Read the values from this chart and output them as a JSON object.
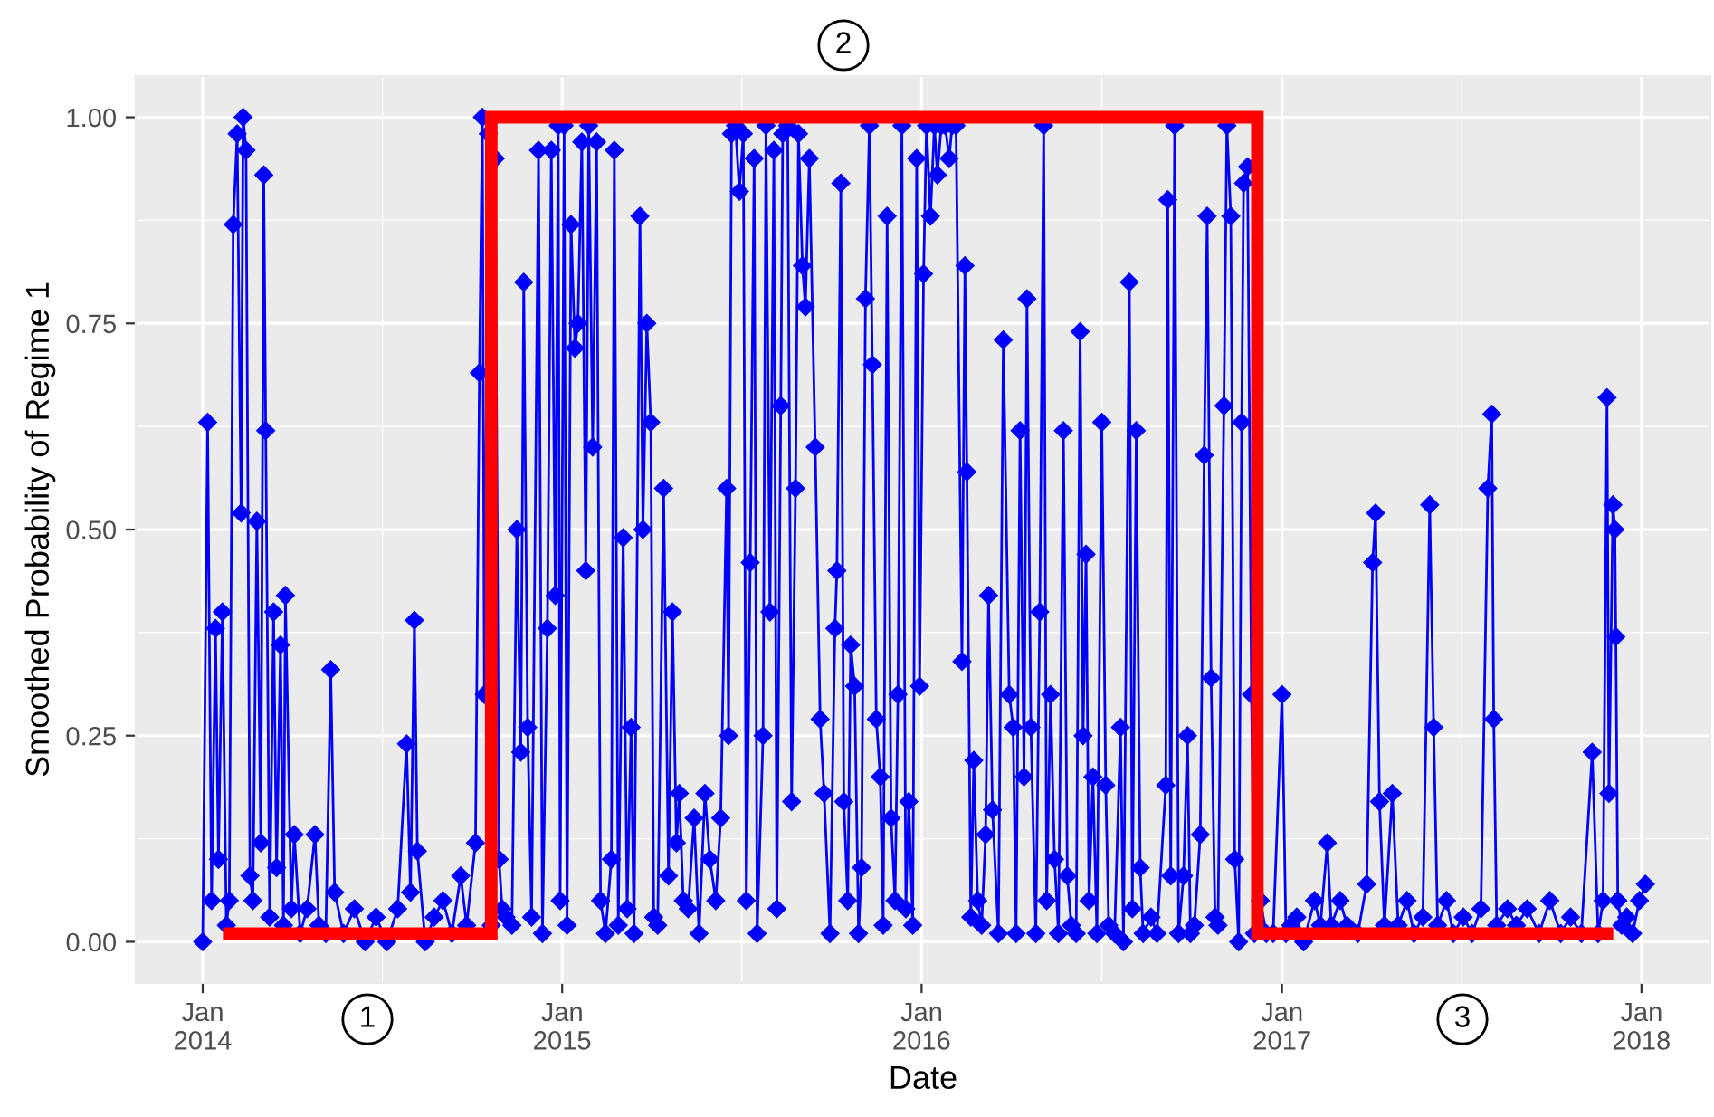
{
  "chart_data": {
    "type": "line",
    "xlabel": "Date",
    "ylabel": "Smoothed Probability of Regime 1",
    "xlim": [
      "2013-10-25",
      "2018-03-12"
    ],
    "ylim": [
      -0.05,
      1.05
    ],
    "xticks": [
      {
        "value": "2014-01-01",
        "label": "Jan\n2014"
      },
      {
        "value": "2015-01-01",
        "label": "Jan\n2015"
      },
      {
        "value": "2016-01-01",
        "label": "Jan\n2016"
      },
      {
        "value": "2017-01-01",
        "label": "Jan\n2017"
      },
      {
        "value": "2018-01-01",
        "label": "Jan\n2018"
      }
    ],
    "yticks": [
      {
        "value": 0,
        "label": "0.00"
      },
      {
        "value": 0.25,
        "label": "0.25"
      },
      {
        "value": 0.5,
        "label": "0.50"
      },
      {
        "value": 0.75,
        "label": "0.75"
      },
      {
        "value": 1,
        "label": "1.00"
      }
    ],
    "grid": true,
    "annotations": [
      "1",
      "2",
      "3"
    ],
    "series": [
      {
        "color": "#0000ff",
        "marker": "diamond",
        "line_style": "solid",
        "x": [
          "2014-01-01",
          "2014-01-06",
          "2014-01-10",
          "2014-01-14",
          "2014-01-17",
          "2014-01-21",
          "2014-01-25",
          "2014-01-28",
          "2014-02-01",
          "2014-02-05",
          "2014-02-09",
          "2014-02-11",
          "2014-02-14",
          "2014-02-18",
          "2014-02-21",
          "2014-02-25",
          "2014-03-01",
          "2014-03-04",
          "2014-03-06",
          "2014-03-10",
          "2014-03-14",
          "2014-03-17",
          "2014-03-21",
          "2014-03-24",
          "2014-03-26",
          "2014-04-01",
          "2014-04-04",
          "2014-04-10",
          "2014-04-17",
          "2014-04-25",
          "2014-04-29",
          "2014-05-06",
          "2014-05-11",
          "2014-05-15",
          "2014-05-24",
          "2014-06-04",
          "2014-06-15",
          "2014-06-26",
          "2014-07-07",
          "2014-07-18",
          "2014-07-27",
          "2014-07-31",
          "2014-08-04",
          "2014-08-07",
          "2014-08-15",
          "2014-08-24",
          "2014-09-02",
          "2014-09-11",
          "2014-09-20",
          "2014-09-26",
          "2014-10-05",
          "2014-10-09",
          "2014-10-12",
          "2014-10-14",
          "2014-10-18",
          "2014-10-21",
          "2014-10-25",
          "2014-10-29",
          "2014-11-01",
          "2014-11-05",
          "2014-11-11",
          "2014-11-16",
          "2014-11-20",
          "2014-11-23",
          "2014-11-27",
          "2014-12-01",
          "2014-12-08",
          "2014-12-12",
          "2014-12-17",
          "2014-12-21",
          "2014-12-25",
          "2014-12-28",
          "2014-12-30",
          "2015-01-03",
          "2015-01-06",
          "2015-01-10",
          "2015-01-14",
          "2015-01-17",
          "2015-01-21",
          "2015-01-25",
          "2015-01-28",
          "2015-02-01",
          "2015-02-05",
          "2015-02-09",
          "2015-02-14",
          "2015-02-20",
          "2015-02-23",
          "2015-02-27",
          "2015-03-04",
          "2015-03-08",
          "2015-03-12",
          "2015-03-15",
          "2015-03-21",
          "2015-03-24",
          "2015-03-28",
          "2015-04-01",
          "2015-04-04",
          "2015-04-08",
          "2015-04-14",
          "2015-04-19",
          "2015-04-23",
          "2015-04-27",
          "2015-04-30",
          "2015-05-04",
          "2015-05-09",
          "2015-05-15",
          "2015-05-20",
          "2015-05-26",
          "2015-05-31",
          "2015-06-06",
          "2015-06-11",
          "2015-06-17",
          "2015-06-19",
          "2015-06-22",
          "2015-06-26",
          "2015-06-30",
          "2015-07-04",
          "2015-07-07",
          "2015-07-11",
          "2015-07-15",
          "2015-07-18",
          "2015-07-24",
          "2015-07-27",
          "2015-07-31",
          "2015-08-04",
          "2015-08-07",
          "2015-08-11",
          "2015-08-13",
          "2015-08-18",
          "2015-08-22",
          "2015-08-26",
          "2015-08-29",
          "2015-09-02",
          "2015-09-05",
          "2015-09-09",
          "2015-09-15",
          "2015-09-20",
          "2015-09-24",
          "2015-09-30",
          "2015-10-05",
          "2015-10-07",
          "2015-10-11",
          "2015-10-14",
          "2015-10-18",
          "2015-10-21",
          "2015-10-25",
          "2015-10-29",
          "2015-11-01",
          "2015-11-05",
          "2015-11-09",
          "2015-11-12",
          "2015-11-16",
          "2015-11-20",
          "2015-11-23",
          "2015-11-27",
          "2015-12-01",
          "2015-12-05",
          "2015-12-08",
          "2015-12-12",
          "2015-12-16",
          "2015-12-19",
          "2015-12-23",
          "2015-12-27",
          "2015-12-30",
          "2016-01-03",
          "2016-01-06",
          "2016-01-10",
          "2016-01-14",
          "2016-01-17",
          "2016-01-21",
          "2016-01-25",
          "2016-01-29",
          "2016-02-01",
          "2016-02-05",
          "2016-02-11",
          "2016-02-14",
          "2016-02-16",
          "2016-02-20",
          "2016-02-23",
          "2016-02-27",
          "2016-03-02",
          "2016-03-06",
          "2016-03-09",
          "2016-03-13",
          "2016-03-19",
          "2016-03-24",
          "2016-03-30",
          "2016-04-03",
          "2016-04-06",
          "2016-04-10",
          "2016-04-14",
          "2016-04-17",
          "2016-04-21",
          "2016-04-26",
          "2016-04-30",
          "2016-05-04",
          "2016-05-07",
          "2016-05-11",
          "2016-05-15",
          "2016-05-19",
          "2016-05-24",
          "2016-05-28",
          "2016-06-01",
          "2016-06-06",
          "2016-06-10",
          "2016-06-13",
          "2016-06-16",
          "2016-06-19",
          "2016-06-23",
          "2016-06-27",
          "2016-07-02",
          "2016-07-06",
          "2016-07-09",
          "2016-07-15",
          "2016-07-21",
          "2016-07-24",
          "2016-07-30",
          "2016-08-02",
          "2016-08-06",
          "2016-08-10",
          "2016-08-13",
          "2016-08-21",
          "2016-08-27",
          "2016-09-05",
          "2016-09-07",
          "2016-09-10",
          "2016-09-14",
          "2016-09-18",
          "2016-09-23",
          "2016-09-27",
          "2016-09-30",
          "2016-10-04",
          "2016-10-10",
          "2016-10-14",
          "2016-10-17",
          "2016-10-21",
          "2016-10-25",
          "2016-10-28",
          "2016-11-03",
          "2016-11-06",
          "2016-11-10",
          "2016-11-14",
          "2016-11-18",
          "2016-11-21",
          "2016-11-23",
          "2016-11-27",
          "2016-12-01",
          "2016-12-04",
          "2016-12-10",
          "2016-12-16",
          "2016-12-23",
          "2017-01-01",
          "2017-01-05",
          "2017-01-10",
          "2017-01-16",
          "2017-01-23",
          "2017-02-03",
          "2017-02-09",
          "2017-02-16",
          "2017-02-20",
          "2017-03-01",
          "2017-03-08",
          "2017-03-19",
          "2017-03-28",
          "2017-04-03",
          "2017-04-06",
          "2017-04-10",
          "2017-04-15",
          "2017-04-23",
          "2017-04-29",
          "2017-05-08",
          "2017-05-15",
          "2017-05-24",
          "2017-05-31",
          "2017-06-04",
          "2017-06-08",
          "2017-06-17",
          "2017-06-24",
          "2017-07-04",
          "2017-07-13",
          "2017-07-22",
          "2017-07-29",
          "2017-08-02",
          "2017-08-04",
          "2017-08-07",
          "2017-08-18",
          "2017-08-27",
          "2017-09-07",
          "2017-09-19",
          "2017-09-30",
          "2017-10-11",
          "2017-10-21",
          "2017-11-01",
          "2017-11-12",
          "2017-11-18",
          "2017-11-23",
          "2017-11-27",
          "2017-11-29",
          "2017-12-03",
          "2017-12-05",
          "2017-12-06",
          "2017-12-08",
          "2017-12-12",
          "2017-12-17",
          "2017-12-23",
          "2017-12-30",
          "2018-01-05"
        ],
        "values": [
          0.0,
          0.63,
          0.05,
          0.38,
          0.1,
          0.4,
          0.02,
          0.05,
          0.87,
          0.98,
          0.52,
          1.0,
          0.96,
          0.08,
          0.05,
          0.51,
          0.12,
          0.93,
          0.62,
          0.03,
          0.4,
          0.09,
          0.36,
          0.02,
          0.42,
          0.04,
          0.13,
          0.01,
          0.04,
          0.13,
          0.02,
          0.01,
          0.33,
          0.06,
          0.01,
          0.04,
          0.0,
          0.03,
          0.0,
          0.04,
          0.24,
          0.06,
          0.39,
          0.11,
          0.0,
          0.03,
          0.05,
          0.01,
          0.08,
          0.02,
          0.12,
          0.69,
          1.0,
          0.3,
          0.98,
          0.02,
          0.95,
          0.1,
          0.04,
          0.03,
          0.02,
          0.5,
          0.23,
          0.8,
          0.26,
          0.03,
          0.96,
          0.01,
          0.38,
          0.96,
          0.42,
          0.99,
          0.05,
          0.99,
          0.02,
          0.87,
          0.72,
          0.75,
          0.97,
          0.45,
          0.99,
          0.6,
          0.97,
          0.05,
          0.01,
          0.1,
          0.96,
          0.02,
          0.49,
          0.04,
          0.26,
          0.01,
          0.88,
          0.5,
          0.75,
          0.63,
          0.03,
          0.02,
          0.55,
          0.08,
          0.4,
          0.12,
          0.18,
          0.05,
          0.04,
          0.15,
          0.01,
          0.18,
          0.1,
          0.05,
          0.15,
          0.55,
          0.25,
          0.98,
          0.99,
          0.91,
          0.98,
          0.05,
          0.46,
          0.95,
          0.01,
          0.25,
          0.99,
          0.4,
          0.96,
          0.04,
          0.65,
          0.98,
          0.99,
          0.17,
          0.55,
          0.98,
          0.82,
          0.77,
          0.95,
          0.6,
          0.27,
          0.18,
          0.01,
          0.38,
          0.45,
          0.92,
          0.17,
          0.05,
          0.36,
          0.31,
          0.01,
          0.09,
          0.78,
          0.99,
          0.7,
          0.27,
          0.2,
          0.02,
          0.88,
          0.15,
          0.05,
          0.3,
          0.99,
          0.04,
          0.17,
          0.02,
          0.95,
          0.31,
          0.81,
          0.99,
          0.88,
          0.99,
          0.93,
          0.99,
          0.99,
          0.95,
          0.99,
          0.99,
          0.34,
          0.82,
          0.57,
          0.03,
          0.22,
          0.05,
          0.02,
          0.13,
          0.42,
          0.16,
          0.01,
          0.73,
          0.3,
          0.26,
          0.01,
          0.62,
          0.2,
          0.78,
          0.26,
          0.01,
          0.4,
          0.99,
          0.05,
          0.3,
          0.1,
          0.01,
          0.62,
          0.08,
          0.02,
          0.01,
          0.74,
          0.25,
          0.47,
          0.05,
          0.2,
          0.01,
          0.63,
          0.19,
          0.02,
          0.01,
          0.26,
          0.0,
          0.8,
          0.04,
          0.62,
          0.09,
          0.01,
          0.03,
          0.01,
          0.19,
          0.9,
          0.08,
          0.99,
          0.01,
          0.08,
          0.25,
          0.01,
          0.02,
          0.13,
          0.59,
          0.88,
          0.32,
          0.03,
          0.02,
          0.65,
          0.99,
          0.88,
          0.1,
          0.0,
          0.63,
          0.92,
          0.94,
          0.3,
          0.01,
          0.05,
          0.01,
          0.01,
          0.3,
          0.01,
          0.02,
          0.03,
          0.0,
          0.05,
          0.02,
          0.12,
          0.02,
          0.05,
          0.02,
          0.01,
          0.07,
          0.46,
          0.52,
          0.17,
          0.02,
          0.18,
          0.02,
          0.05,
          0.01,
          0.03,
          0.53,
          0.26,
          0.02,
          0.05,
          0.01,
          0.03,
          0.01,
          0.04,
          0.55,
          0.64,
          0.27,
          0.02,
          0.04,
          0.02,
          0.04,
          0.01,
          0.05,
          0.01,
          0.03,
          0.01,
          0.23,
          0.01,
          0.05,
          0.66,
          0.18,
          0.53,
          0.5,
          0.37,
          0.05,
          0.02,
          0.03,
          0.01,
          0.05,
          0.07
        ]
      },
      {
        "type": "step",
        "color": "#ff0000",
        "line_style": "solid",
        "x": [
          "2014-01-28",
          "2014-10-21",
          "2016-12-07",
          "2017-11-27"
        ],
        "values": [
          0.01,
          1,
          0.01,
          0.01
        ]
      }
    ]
  }
}
